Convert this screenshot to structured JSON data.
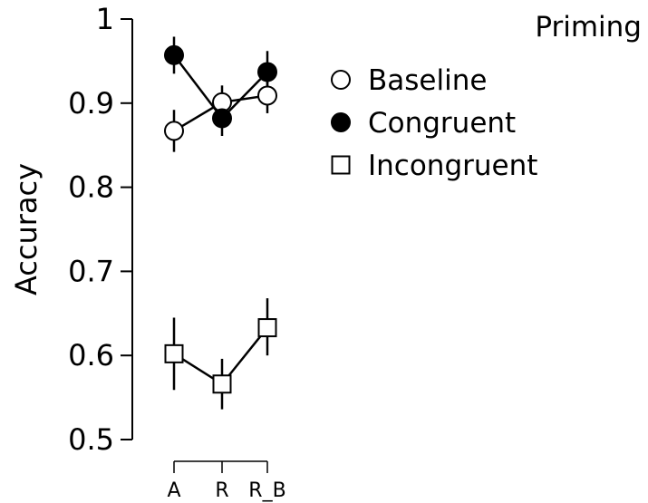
{
  "chart_data": {
    "type": "line",
    "title": "",
    "xlabel": "",
    "ylabel": "Accuracy",
    "categories": [
      "A",
      "R",
      "R_B"
    ],
    "ylim": [
      0.5,
      1.0
    ],
    "yticks": [
      "0.5",
      "0.6",
      "0.7",
      "0.8",
      "0.9",
      "1"
    ],
    "yticks_values": [
      0.5,
      0.6,
      0.7,
      0.8,
      0.9,
      1.0
    ],
    "legend_title": "Priming",
    "legend_position": "top-right",
    "grid": false,
    "series": [
      {
        "name": "Baseline",
        "marker": "circle-open",
        "values": [
          0.867,
          0.901,
          0.909
        ],
        "err_low": [
          0.842,
          0.881,
          0.888
        ],
        "err_high": [
          0.892,
          0.921,
          0.93
        ]
      },
      {
        "name": "Congruent",
        "marker": "circle-filled",
        "values": [
          0.957,
          0.882,
          0.937
        ],
        "err_low": [
          0.935,
          0.861,
          0.914
        ],
        "err_high": [
          0.979,
          0.902,
          0.962
        ]
      },
      {
        "name": "Incongruent",
        "marker": "square-open",
        "values": [
          0.602,
          0.566,
          0.633
        ],
        "err_low": [
          0.559,
          0.536,
          0.6
        ],
        "err_high": [
          0.645,
          0.596,
          0.668
        ]
      }
    ]
  }
}
